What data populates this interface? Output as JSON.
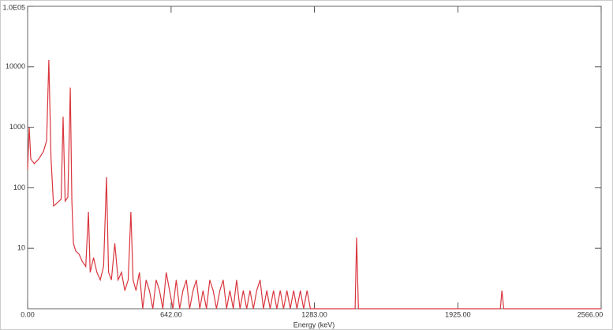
{
  "chart_data": {
    "type": "line",
    "log_y": true,
    "color": "#d9363e",
    "xlabel": "Energy (keV)",
    "xlim": [
      0,
      2566
    ],
    "xticks": [
      {
        "value": 0,
        "label": "0.00"
      },
      {
        "value": 642,
        "label": "642.00"
      },
      {
        "value": 1283,
        "label": "1283.00"
      },
      {
        "value": 1925,
        "label": "1925.00"
      },
      {
        "value": 2566,
        "label": "2566.00"
      }
    ],
    "ylim": [
      1,
      100000
    ],
    "yticks": [
      10,
      100,
      1000,
      10000,
      {
        "value": 100000,
        "label": "1.0E05"
      }
    ],
    "x": [
      0,
      7,
      14,
      30,
      50,
      71,
      85,
      95,
      105,
      116,
      130,
      150,
      159,
      168,
      180,
      191,
      198,
      205,
      215,
      230,
      245,
      260,
      272,
      280,
      295,
      310,
      325,
      340,
      353,
      362,
      375,
      390,
      405,
      420,
      435,
      450,
      462,
      472,
      485,
      500,
      515,
      530,
      545,
      560,
      575,
      590,
      605,
      620,
      635,
      650,
      665,
      680,
      695,
      710,
      725,
      740,
      755,
      770,
      785,
      800,
      815,
      830,
      845,
      860,
      875,
      890,
      905,
      920,
      935,
      950,
      965,
      980,
      995,
      1010,
      1025,
      1040,
      1055,
      1070,
      1085,
      1100,
      1115,
      1130,
      1145,
      1160,
      1175,
      1190,
      1205,
      1220,
      1235,
      1250,
      1265,
      1400,
      1465,
      1472,
      1480,
      1600,
      2115,
      2122,
      2130,
      2566
    ],
    "values": [
      200,
      1000,
      300,
      250,
      300,
      400,
      600,
      13000,
      300,
      50,
      55,
      65,
      1500,
      60,
      70,
      4500,
      60,
      12,
      9,
      8,
      6,
      5,
      40,
      4,
      7,
      4,
      3,
      5,
      150,
      4,
      3,
      12,
      3,
      4,
      2,
      3,
      40,
      3,
      2,
      4,
      1,
      3,
      2,
      1,
      3,
      2,
      1,
      4,
      2,
      1,
      3,
      1,
      2,
      3,
      1,
      2,
      3,
      1,
      2,
      1,
      3,
      2,
      1,
      2,
      3,
      1,
      2,
      1,
      3,
      1,
      2,
      1,
      2,
      1,
      2,
      3,
      1,
      2,
      1,
      2,
      1,
      2,
      1,
      2,
      1,
      2,
      1,
      2,
      1,
      2,
      1,
      1,
      1,
      15,
      1,
      1,
      1,
      2,
      1,
      1
    ]
  }
}
